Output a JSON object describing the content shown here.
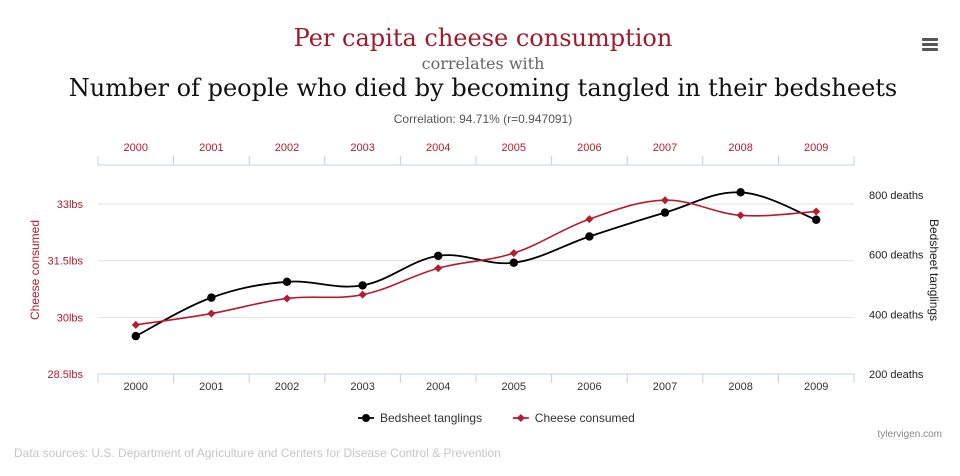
{
  "header": {
    "title_line1": "Per capita cheese consumption",
    "connector": "correlates with",
    "title_line2": "Number of people who died by becoming tangled in their bedsheets",
    "correlation": "Correlation: 94.71% (r=0.947091)"
  },
  "chart_data": {
    "type": "line",
    "x": [
      2000,
      2001,
      2002,
      2003,
      2004,
      2005,
      2006,
      2007,
      2008,
      2009
    ],
    "x_tick_labels": [
      "2000",
      "2001",
      "2002",
      "2003",
      "2004",
      "2005",
      "2006",
      "2007",
      "2008",
      "2009"
    ],
    "series": [
      {
        "name": "Bedsheet tanglings",
        "axis": "right",
        "color": "#000000",
        "marker": "circle",
        "values": [
          327,
          456,
          509,
          497,
          596,
          573,
          661,
          741,
          809,
          717
        ]
      },
      {
        "name": "Cheese consumed",
        "axis": "left",
        "color": "#b41c30",
        "marker": "diamond",
        "values": [
          29.8,
          30.1,
          30.5,
          30.6,
          31.3,
          31.7,
          32.6,
          33.1,
          32.7,
          32.8
        ]
      }
    ],
    "y_left": {
      "label": "Cheese consumed",
      "ticks": [
        "28.5lbs",
        "30lbs",
        "31.5lbs",
        "33lbs"
      ],
      "tick_values": [
        28.5,
        30,
        31.5,
        33
      ],
      "range": [
        28.5,
        33
      ]
    },
    "y_right": {
      "label": "Bedsheet tanglings",
      "ticks": [
        "200 deaths",
        "400 deaths",
        "600 deaths",
        "800 deaths"
      ],
      "tick_values": [
        200,
        400,
        600,
        800
      ],
      "range": [
        200,
        800
      ]
    },
    "grid": true,
    "legend_position": "bottom-center",
    "colors": {
      "left_axis": "#b41c30",
      "right_axis": "#000000"
    }
  },
  "footer": {
    "data_sources": "Data sources: U.S. Department of Agriculture and Centers for Disease Control & Prevention",
    "credit": "tylervigen.com"
  }
}
